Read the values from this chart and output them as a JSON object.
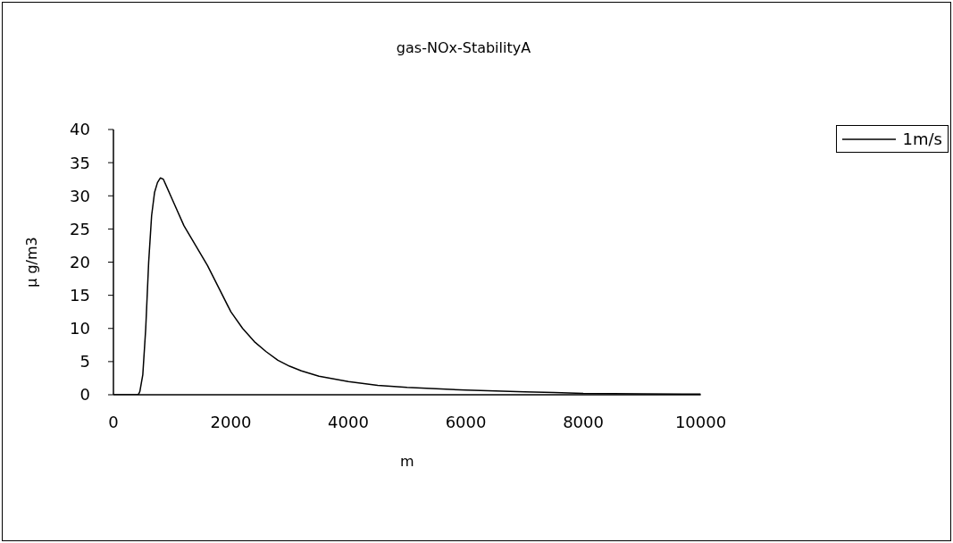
{
  "chart_data": {
    "type": "line",
    "title": "gas-NOx-StabilityA",
    "xlabel": "m",
    "ylabel": "μ g/m3",
    "x": [
      0,
      200,
      400,
      430,
      450,
      500,
      550,
      600,
      650,
      700,
      750,
      800,
      850,
      900,
      1000,
      1200,
      1400,
      1600,
      1800,
      2000,
      2200,
      2400,
      2600,
      2800,
      3000,
      3200,
      3500,
      4000,
      4500,
      5000,
      6000,
      7000,
      7500,
      8000,
      9000,
      10000
    ],
    "series": [
      {
        "name": "1m/s",
        "color": "#000000",
        "values": [
          0,
          0,
          0,
          0.1,
          0.5,
          3,
          10,
          20,
          27,
          30.5,
          32,
          32.7,
          32.5,
          31.5,
          29.5,
          25.5,
          22.5,
          19.5,
          16,
          12.5,
          10,
          8,
          6.5,
          5.2,
          4.3,
          3.6,
          2.8,
          2,
          1.4,
          1.1,
          0.7,
          0.45,
          0.35,
          0.2,
          0.15,
          0.1
        ]
      }
    ],
    "xlim": [
      0,
      10000
    ],
    "xticks": [
      0,
      2000,
      4000,
      6000,
      8000,
      10000
    ],
    "ylim": [
      0,
      40
    ],
    "yticks": [
      0,
      5,
      10,
      15,
      20,
      25,
      30,
      35,
      40
    ],
    "grid": false,
    "legend": "right",
    "marker": "none",
    "line_style": "solid"
  }
}
